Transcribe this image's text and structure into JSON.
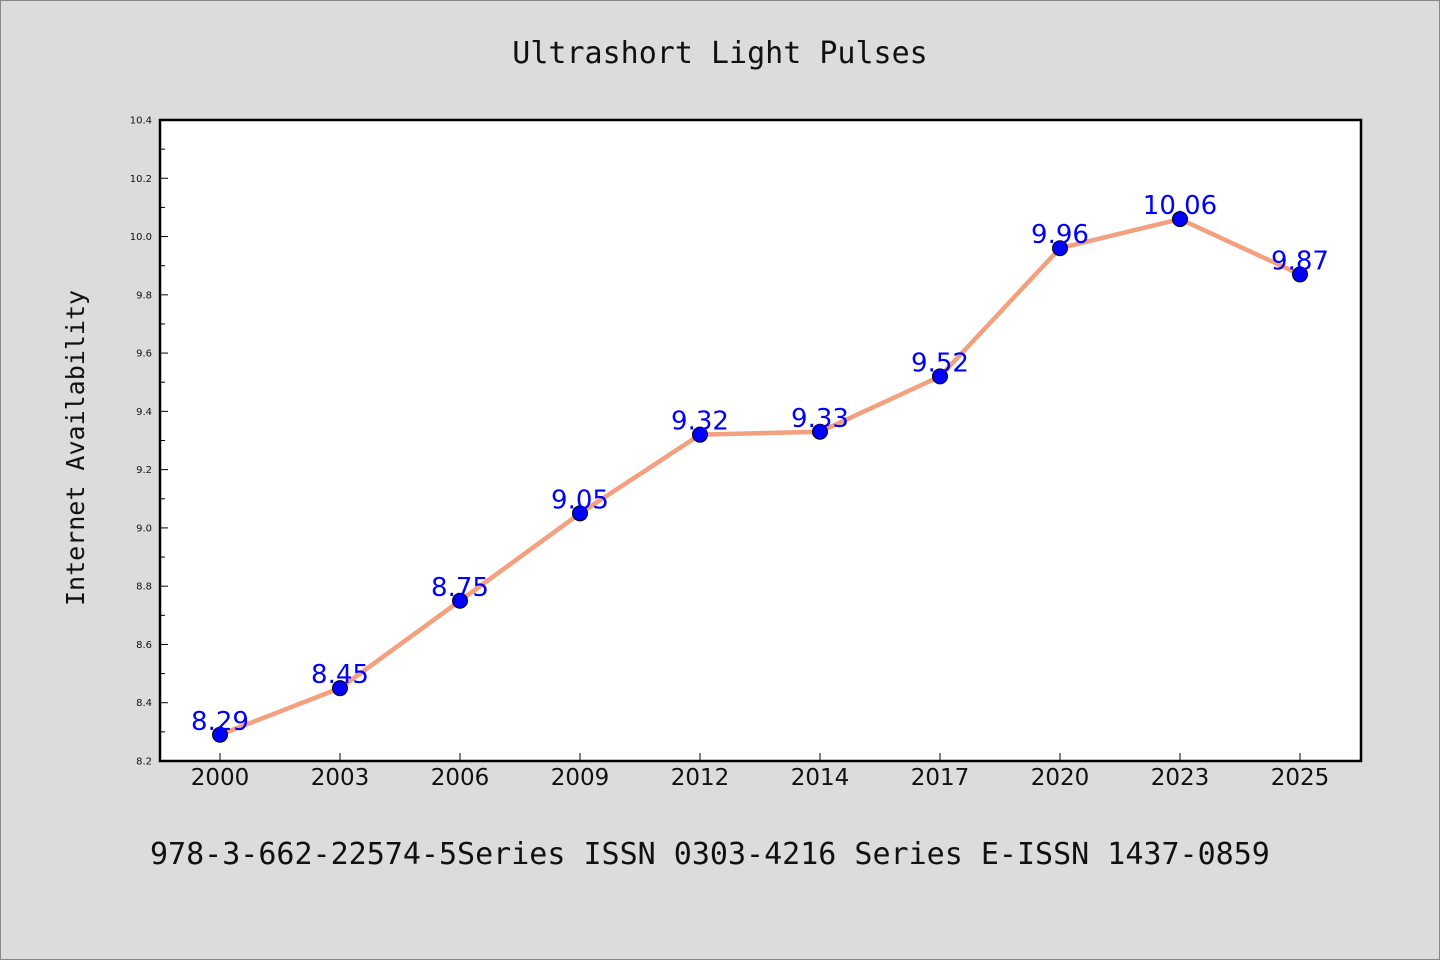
{
  "chart_data": {
    "type": "line",
    "title": "Ultrashort Light Pulses",
    "xlabel": "",
    "ylabel": "Internet Availability",
    "categories": [
      "2000",
      "2003",
      "2006",
      "2009",
      "2012",
      "2014",
      "2017",
      "2020",
      "2023",
      "2025"
    ],
    "values": [
      8.29,
      8.45,
      8.75,
      9.05,
      9.32,
      9.33,
      9.52,
      9.96,
      10.06,
      9.87
    ],
    "data_labels": [
      "8.29",
      "8.45",
      "8.75",
      "9.05",
      "9.32",
      "9.33",
      "9.52",
      "9.96",
      "10.06",
      "9.87"
    ],
    "ylim": [
      8.2,
      10.4
    ],
    "yticks": [
      "8.2",
      "8.4",
      "8.6",
      "8.8",
      "9.0",
      "9.2",
      "9.4",
      "9.6",
      "9.8",
      "10.0",
      "10.2",
      "10.4"
    ],
    "grid": false,
    "line_color": "#f4a07e",
    "marker_color": "#0000ff",
    "label_color": "#0000ff"
  },
  "footer": {
    "text": "978-3-662-22574-5Series ISSN 0303-4216 Series E-ISSN 1437-0859"
  }
}
